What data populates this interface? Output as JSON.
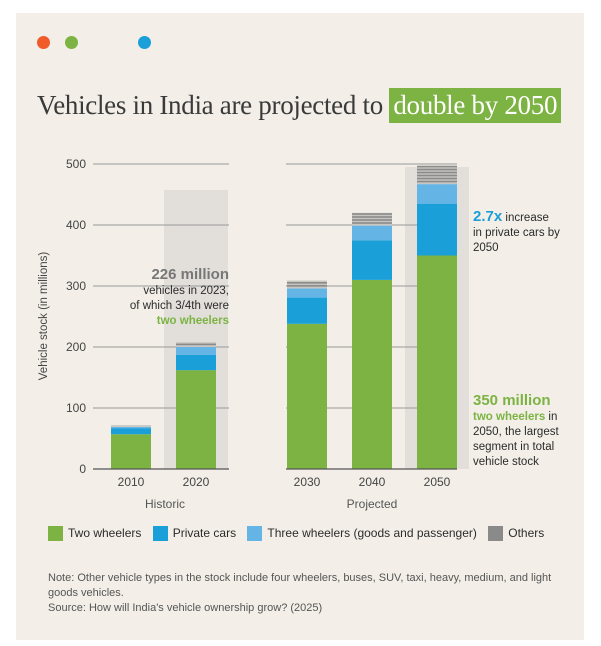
{
  "colors": {
    "two_wheelers": "#7cb342",
    "private_cars": "#1a9fd8",
    "three_wheelers": "#64b5e6",
    "others": "#8a8a8a",
    "dot_orange": "#f15a29",
    "dot_green": "#7cb342",
    "dot_blue": "#1a9fd8",
    "highlight_band": "#e2dfda",
    "grid": "#9a9a9a"
  },
  "title": {
    "main": "Vehicles in India are projected to ",
    "highlight": "double by 2050"
  },
  "chart_data": {
    "type": "bar",
    "stacked": true,
    "categories": [
      "2010",
      "2020",
      "2030",
      "2040",
      "2050"
    ],
    "groups": [
      {
        "label": "Historic",
        "categories": [
          "2010",
          "2020"
        ]
      },
      {
        "label": "Projected",
        "categories": [
          "2030",
          "2040",
          "2050"
        ]
      }
    ],
    "series": [
      {
        "name": "Two wheelers",
        "values": [
          57,
          162,
          238,
          310,
          350
        ]
      },
      {
        "name": "Private cars",
        "values": [
          10,
          25,
          43,
          65,
          85
        ]
      },
      {
        "name": "Three wheelers (goods and passenger)",
        "values": [
          2,
          13,
          15,
          24,
          32
        ]
      },
      {
        "name": "Others",
        "values": [
          3,
          8,
          13,
          21,
          28
        ]
      }
    ],
    "highlighted_categories": [
      "2020",
      "2050"
    ],
    "ylabel": "Vehicle stock (in millions)",
    "xlabel": "",
    "ylim": [
      0,
      500
    ],
    "yticks": [
      0,
      100,
      200,
      300,
      400,
      500
    ],
    "gridlines": true
  },
  "annotations": {
    "year2023": {
      "big": "226 million",
      "line1": "vehicles in 2023,",
      "line2": "of which 3/4th were",
      "line3": "two wheelers"
    },
    "cars": {
      "big": "2.7x",
      "line1_rest": " increase",
      "line2": "in private cars by",
      "line3": "2050"
    },
    "two_wheelers_2050": {
      "big": "350 million",
      "line1_hl": "two wheelers",
      "line1_rest": " in",
      "line2": "2050, the largest",
      "line3": "segment in total",
      "line4": "vehicle stock"
    }
  },
  "legend": {
    "two_wheelers": "Two wheelers",
    "private_cars": "Private cars",
    "three_wheelers": "Three wheelers (goods and passenger)",
    "others": "Others"
  },
  "note": {
    "text": "Note: Other vehicle types in the stock include four wheelers, buses, SUV, taxi, heavy, medium, and light goods vehicles.",
    "source": "Source:  How will India's vehicle ownership grow? (2025)"
  }
}
